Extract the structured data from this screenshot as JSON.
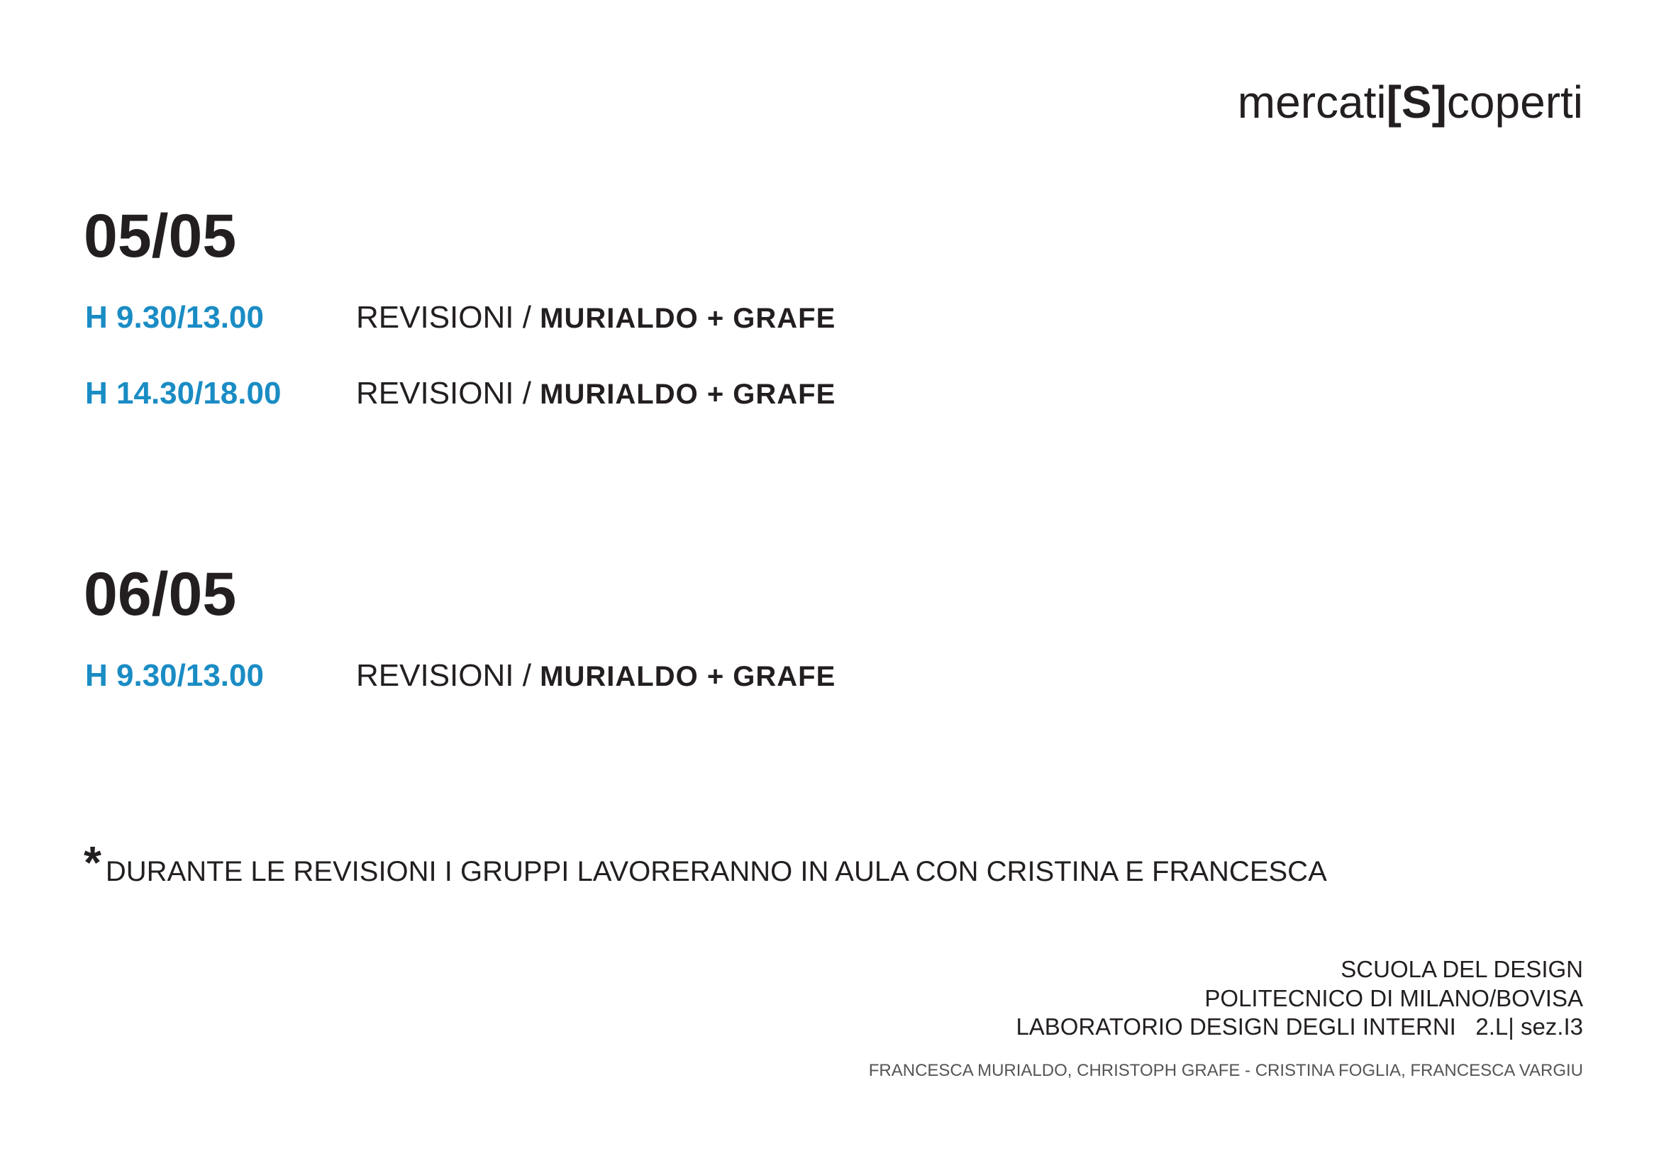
{
  "logo": {
    "prefix": "mercati",
    "bracket_open": "[",
    "highlight": "S",
    "bracket_close": "]",
    "suffix": "coperti"
  },
  "days": [
    {
      "date": "05/05",
      "sessions": [
        {
          "time": "H 9.30/13.00",
          "activity": "REVISIONI / ",
          "people": "MURIALDO + GRAFE"
        },
        {
          "time": "H 14.30/18.00",
          "activity": "REVISIONI / ",
          "people": "MURIALDO + GRAFE"
        }
      ]
    },
    {
      "date": "06/05",
      "sessions": [
        {
          "time": "H 9.30/13.00",
          "activity": "REVISIONI / ",
          "people": "MURIALDO + GRAFE"
        }
      ]
    }
  ],
  "note": {
    "marker": "*",
    "text": "DURANTE LE REVISIONI I GRUPPI LAVORERANNO IN AULA CON CRISTINA E FRANCESCA"
  },
  "footer": {
    "lines": [
      "SCUOLA DEL DESIGN",
      "POLITECNICO DI MILANO/BOVISA",
      "LABORATORIO DESIGN DEGLI INTERNI   2.L| sez.I3"
    ],
    "credits": "FRANCESCA MURIALDO, CHRISTOPH GRAFE - CRISTINA FOGLIA, FRANCESCA VARGIU"
  },
  "colors": {
    "accent": "#1a8cc4",
    "text": "#231f20"
  }
}
